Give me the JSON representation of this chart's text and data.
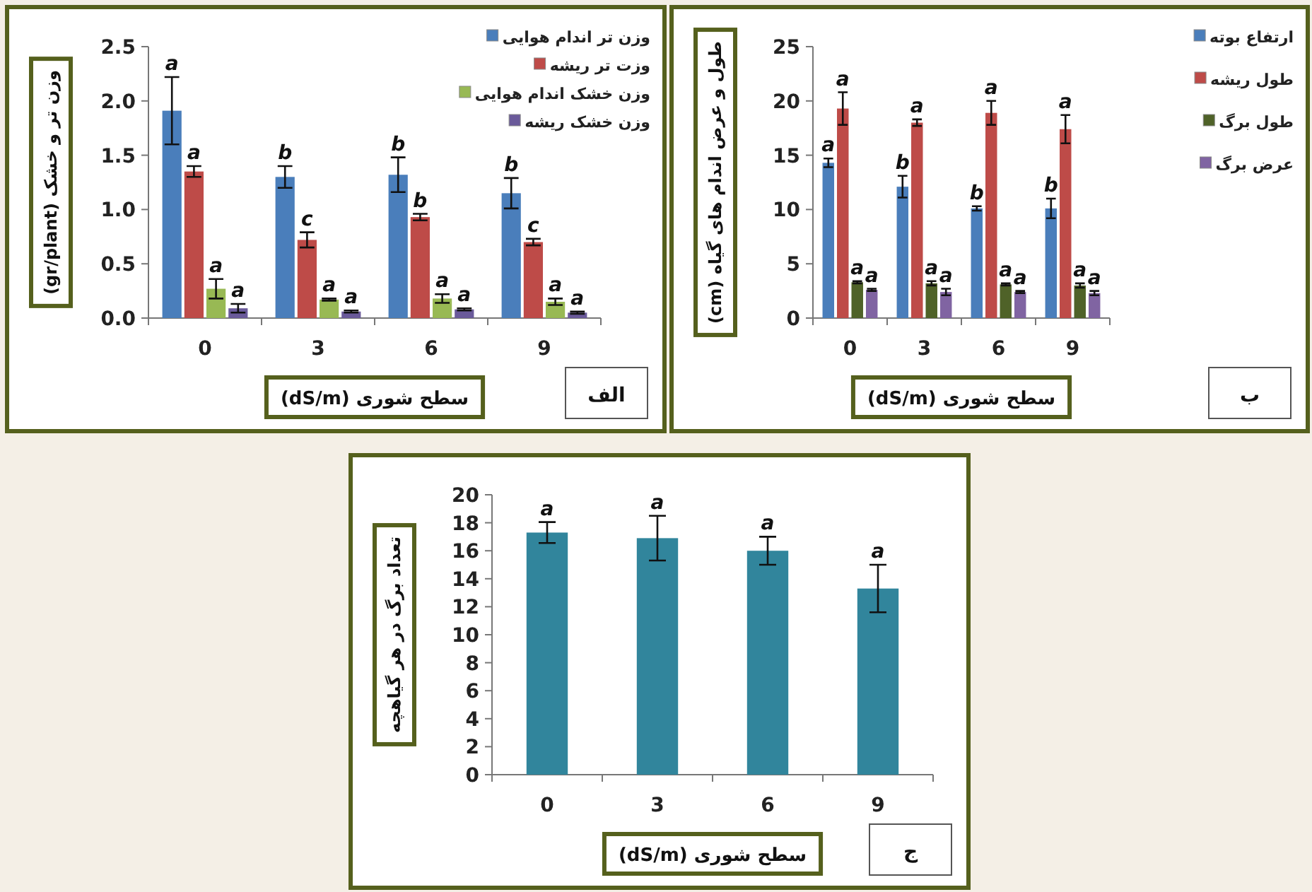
{
  "chart_data": [
    {
      "type": "bar",
      "xlabel": "سطح شوری (dS/m)",
      "ylabel": "وزن تر و خشک (gr/plant)",
      "categories": [
        "0",
        "3",
        "6",
        "9"
      ],
      "ylim": [
        0,
        2.5
      ],
      "yticks": [
        {
          "value": 0,
          "label": "0.0"
        },
        {
          "value": 0.5,
          "label": "0.5"
        },
        {
          "value": 1,
          "label": "1.0"
        },
        {
          "value": 1.5,
          "label": "1.5"
        },
        {
          "value": 2,
          "label": "2.0"
        },
        {
          "value": 2.5,
          "label": "2.5"
        }
      ],
      "legend": "top right",
      "grid": false,
      "annotations": [
        "الف"
      ],
      "series": [
        {
          "name": "وزن تر اندام هوایی",
          "color": "#4a7ebb",
          "values": [
            1.91,
            1.3,
            1.32,
            1.15
          ],
          "errors": [
            0.31,
            0.1,
            0.16,
            0.14
          ],
          "value_labels": [
            "a",
            "b",
            "b",
            "b"
          ]
        },
        {
          "name": "وزت تر ریشه",
          "color": "#be4b48",
          "values": [
            1.35,
            0.72,
            0.93,
            0.7
          ],
          "errors": [
            0.05,
            0.07,
            0.03,
            0.03
          ],
          "value_labels": [
            "a",
            "c",
            "b",
            "c"
          ]
        },
        {
          "name": "وزن خشک اندام هوایی",
          "color": "#98b954",
          "values": [
            0.27,
            0.17,
            0.18,
            0.15
          ],
          "errors": [
            0.09,
            0.01,
            0.04,
            0.03
          ],
          "value_labels": [
            "a",
            "a",
            "a",
            "a"
          ]
        },
        {
          "name": "وزن خشک ریشه",
          "color": "#6a5a9a",
          "values": [
            0.09,
            0.06,
            0.08,
            0.05
          ],
          "errors": [
            0.04,
            0.01,
            0.01,
            0.01
          ],
          "value_labels": [
            "a",
            "a",
            "a",
            "a"
          ]
        }
      ]
    },
    {
      "type": "bar",
      "xlabel": "سطح شوری (dS/m)",
      "ylabel": "طول و عرض اندام های گیاه (cm)",
      "categories": [
        "0",
        "3",
        "6",
        "9"
      ],
      "ylim": [
        0,
        25
      ],
      "yticks": [
        0,
        5,
        10,
        15,
        20,
        25
      ],
      "legend": "right",
      "grid": false,
      "annotations": [
        "ب"
      ],
      "series": [
        {
          "name": "ارتفاع بوته",
          "color": "#4a7ebb",
          "values": [
            14.3,
            12.1,
            10.1,
            10.1
          ],
          "errors": [
            0.4,
            1.0,
            0.2,
            0.9
          ],
          "value_labels": [
            "a",
            "b",
            "b",
            "b"
          ]
        },
        {
          "name": "طول ریشه",
          "color": "#be4b48",
          "values": [
            19.3,
            18.0,
            18.9,
            17.4
          ],
          "errors": [
            1.5,
            0.3,
            1.1,
            1.3
          ],
          "value_labels": [
            "a",
            "a",
            "a",
            "a"
          ]
        },
        {
          "name": "طول برگ",
          "color": "#4f6228",
          "values": [
            3.3,
            3.2,
            3.1,
            3.0
          ],
          "errors": [
            0.1,
            0.2,
            0.1,
            0.2
          ],
          "value_labels": [
            "a",
            "a",
            "a",
            "a"
          ]
        },
        {
          "name": "عرض برگ",
          "color": "#8064a2",
          "values": [
            2.6,
            2.4,
            2.4,
            2.3
          ],
          "errors": [
            0.1,
            0.3,
            0.1,
            0.2
          ],
          "value_labels": [
            "a",
            "a",
            "a",
            "a"
          ]
        }
      ]
    },
    {
      "type": "bar",
      "xlabel": "سطح شوری (dS/m)",
      "ylabel": "تعداد برگ در هر گیاهچه",
      "categories": [
        "0",
        "3",
        "6",
        "9"
      ],
      "ylim": [
        0,
        20
      ],
      "yticks": [
        0,
        2,
        4,
        6,
        8,
        10,
        12,
        14,
        16,
        18,
        20
      ],
      "grid": false,
      "annotations": [
        "ج"
      ],
      "series": [
        {
          "color": "#31859c",
          "values": [
            17.3,
            16.9,
            16.0,
            13.3
          ],
          "errors": [
            0.75,
            1.6,
            1.0,
            1.7
          ],
          "value_labels": [
            "a",
            "a",
            "a",
            "a"
          ]
        }
      ]
    }
  ]
}
